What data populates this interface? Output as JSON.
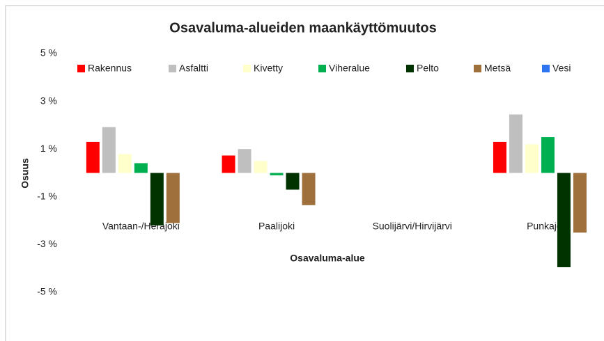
{
  "chart_data": {
    "type": "bar",
    "title": "Osavaluma-alueiden maankäyttömuutos",
    "x_label": "Osavaluma-alue",
    "y_label": "Osuus",
    "categories": [
      "Vantaan-/Herajoki",
      "Paalijoki",
      "Suolijärvi/Hirvijärvi",
      "Punkajoki"
    ],
    "series": [
      {
        "name": "Rakennus",
        "color": "#ff0000",
        "values": [
          1.3,
          0.73,
          0,
          1.3
        ]
      },
      {
        "name": "Asfaltti",
        "color": "#bfbfbf",
        "values": [
          1.92,
          1.0,
          0,
          2.45
        ]
      },
      {
        "name": "Kivetty",
        "color": "#ffffcc",
        "values": [
          0.79,
          0.5,
          0,
          1.2
        ]
      },
      {
        "name": "Viheralue",
        "color": "#00b050",
        "values": [
          0.41,
          -0.1,
          0,
          1.5
        ]
      },
      {
        "name": "Pelto",
        "color": "#003300",
        "values": [
          -2.2,
          -0.7,
          0,
          -3.95
        ]
      },
      {
        "name": "Metsä",
        "color": "#a0703c",
        "values": [
          -2.1,
          -1.35,
          0,
          -2.5
        ]
      },
      {
        "name": "Vesi",
        "color": "#2f75f0",
        "values": [
          0,
          0,
          0,
          0
        ]
      }
    ],
    "ylim": [
      -5,
      5
    ],
    "yticks": [
      {
        "value": 5,
        "label": "5 %"
      },
      {
        "value": 3,
        "label": "3 %"
      },
      {
        "value": 1,
        "label": "1 %"
      },
      {
        "value": -1,
        "label": "-1 %"
      },
      {
        "value": -3,
        "label": "-3 %"
      },
      {
        "value": -5,
        "label": "-5 %"
      }
    ],
    "grid": false,
    "legend": "top"
  }
}
